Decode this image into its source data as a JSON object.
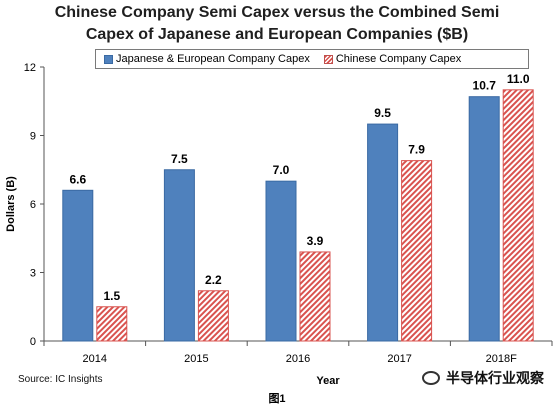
{
  "chart_data": {
    "type": "bar",
    "title_line1": "Chinese Company Semi Capex versus the Combined Semi",
    "title_line2": "Capex of Japanese and European Companies ($B)",
    "xlabel": "Year",
    "ylabel": "Dollars (B)",
    "categories": [
      "2014",
      "2015",
      "2016",
      "2017",
      "2018F"
    ],
    "ylim": [
      0,
      12
    ],
    "yticks": [
      "0",
      "3",
      "6",
      "9",
      "12"
    ],
    "series": [
      {
        "name": "Japanese & European Company Capex",
        "values": [
          6.6,
          7.5,
          7.0,
          9.5,
          10.7
        ],
        "labels": [
          "6.6",
          "7.5",
          "7.0",
          "9.5",
          "10.7"
        ],
        "color": "#4f81bd"
      },
      {
        "name": "Chinese Company Capex",
        "values": [
          1.5,
          2.2,
          3.9,
          7.9,
          11.0
        ],
        "labels": [
          "1.5",
          "2.2",
          "3.9",
          "7.9",
          "11.0"
        ],
        "color": "#d9534f"
      }
    ],
    "legend": "top",
    "grid": false
  },
  "source": "Source: IC Insights",
  "caption": "图1",
  "watermark": "半导体行业观察"
}
